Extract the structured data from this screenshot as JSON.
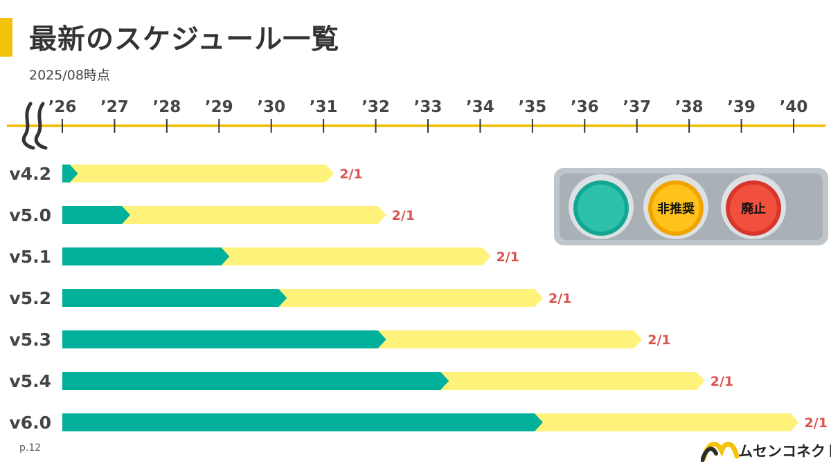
{
  "title": "最新のスケジュール一覧",
  "subtitle": "2025/08時点",
  "page_number": "p.12",
  "logo_text": "ムセンコネクト",
  "traffic_light": {
    "green": "",
    "yellow": "非推奨",
    "red": "廃止"
  },
  "colors": {
    "accent": "#F4C20D",
    "active": "#00B09B",
    "deprecated": "#FFF27A",
    "date_text": "#D9534F",
    "axis": "#F4C20D"
  },
  "chart_data": {
    "type": "bar",
    "orientation": "horizontal-gantt",
    "title": "最新のスケジュール一覧",
    "x_ticks": [
      "’26",
      "’27",
      "’28",
      "’29",
      "’30",
      "’31",
      "’32",
      "’33",
      "’34",
      "’35",
      "’36",
      "’37",
      "’38",
      "’39",
      "’40"
    ],
    "x_range": [
      2026,
      2040
    ],
    "axis_break_at_start": true,
    "categories": [
      "v4.2",
      "v5.0",
      "v5.1",
      "v5.2",
      "v5.3",
      "v5.4",
      "v6.0"
    ],
    "series": [
      {
        "name": "",
        "values": [
          2026.3,
          2027.3,
          2029.2,
          2030.3,
          2032.2,
          2033.4,
          2035.2
        ]
      },
      {
        "name": "非推奨",
        "values": [
          2031.2,
          2032.2,
          2034.2,
          2035.2,
          2037.1,
          2038.3,
          2040.1
        ]
      }
    ],
    "end_labels": [
      "2/1",
      "2/1",
      "2/1",
      "2/1",
      "2/1",
      "2/1",
      "2/1"
    ]
  }
}
